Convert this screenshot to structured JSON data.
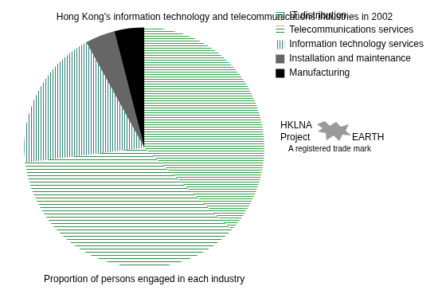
{
  "chart_data": {
    "type": "pie",
    "title": "Hong Kong's information technology and telecommunications industries in 2002",
    "subtitle": "Proportion of persons engaged in each industry",
    "categories": [
      "IT distribution",
      "Telecommunications services",
      "Information technology services",
      "Installation and maintenance",
      "Manufacturing"
    ],
    "values": [
      37,
      36,
      19,
      4,
      4
    ],
    "colors": [
      "#33a04a",
      "#2f8c46",
      "#2e7f7a",
      "#666666",
      "#000000"
    ],
    "legend": "right",
    "annotations": [
      "HKLNA",
      "Project",
      "EARTH",
      "A registered trade mark"
    ]
  }
}
